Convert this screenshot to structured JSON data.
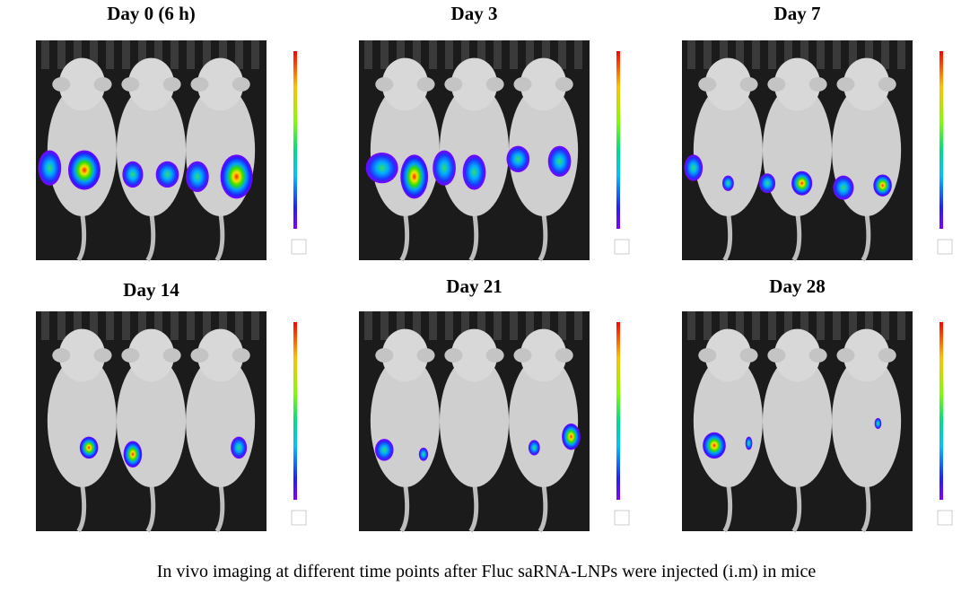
{
  "panels": [
    {
      "title": "Day 0 (6 h)"
    },
    {
      "title": "Day 3"
    },
    {
      "title": "Day 7"
    },
    {
      "title": "Day 14"
    },
    {
      "title": "Day 21"
    },
    {
      "title": "Day 28"
    }
  ],
  "caption": "In vivo imaging at different time points after Fluc saRNA-LNPs were injected (i.m) in mice"
}
